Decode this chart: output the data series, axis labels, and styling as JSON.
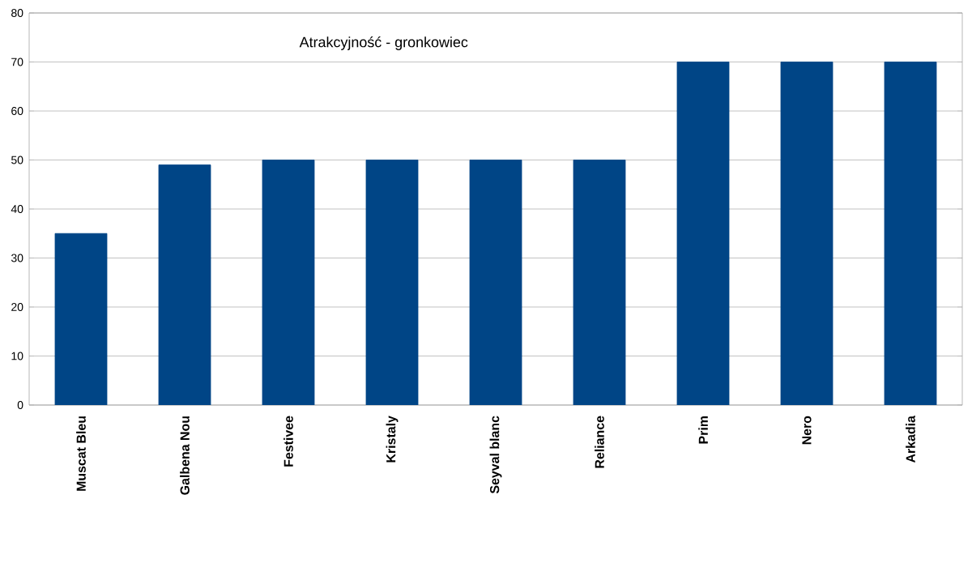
{
  "chart_data": {
    "type": "bar",
    "title": "Atrakcyjność - gronkowiec",
    "categories": [
      "Muscat Bleu",
      "Galbena Nou",
      "Festivee",
      "Kristaly",
      "Seyval blanc",
      "Reliance",
      "Prim",
      "Nero",
      "Arkadia"
    ],
    "values": [
      35,
      49,
      50,
      50,
      50,
      50,
      70,
      70,
      70
    ],
    "color": "#004586",
    "ylim": [
      0,
      80
    ],
    "yticks": [
      0,
      10,
      20,
      30,
      40,
      50,
      60,
      70,
      80
    ],
    "grid": "y"
  }
}
